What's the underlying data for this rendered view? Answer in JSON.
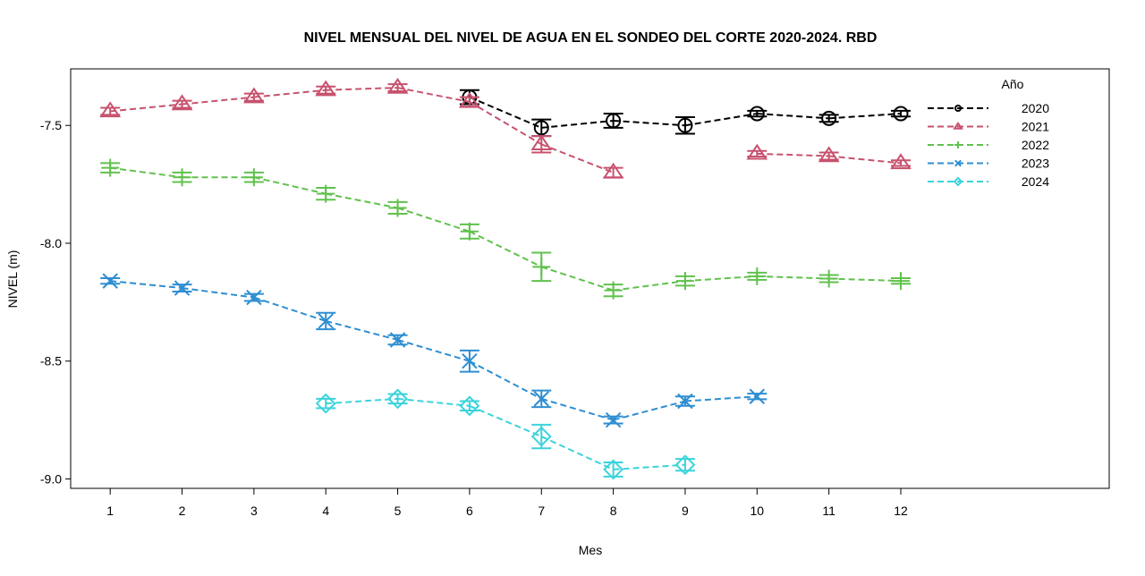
{
  "chart_data": {
    "type": "line",
    "title": "NIVEL MENSUAL DEL NIVEL DE AGUA EN EL  SONDEO DEL CORTE 2020-2024. RBD",
    "xlabel": "Mes",
    "ylabel": "NIVEL (m)",
    "xlim": [
      0.45,
      14.9
    ],
    "ylim": [
      -9.04,
      -7.26
    ],
    "x_ticks": [
      1,
      2,
      3,
      4,
      5,
      6,
      7,
      8,
      9,
      10,
      11,
      12
    ],
    "y_ticks": [
      -9.0,
      -8.5,
      -8.0,
      -7.5
    ],
    "y_tick_labels": [
      "-9.0",
      "-8.5",
      "-8.0",
      "-7.5"
    ],
    "grid": false,
    "legend": {
      "title": "Año",
      "position": "top-right"
    },
    "series": [
      {
        "name": "2020",
        "color": "#000000",
        "marker": "circle",
        "x": [
          6,
          7,
          8,
          9,
          10,
          11,
          12
        ],
        "y": [
          -7.38,
          -7.51,
          -7.48,
          -7.5,
          -7.45,
          -7.47,
          -7.45
        ],
        "err": [
          0.03,
          0.035,
          0.03,
          0.035,
          0.012,
          0.015,
          0.012
        ]
      },
      {
        "name": "2021",
        "color": "#C7526E",
        "marker": "triangle",
        "x": [
          1,
          2,
          3,
          4,
          5,
          6,
          7,
          8,
          10,
          11,
          12
        ],
        "y": [
          -7.44,
          -7.41,
          -7.38,
          -7.35,
          -7.34,
          -7.4,
          -7.58,
          -7.7,
          -7.62,
          -7.63,
          -7.66
        ],
        "err": [
          0.015,
          0.015,
          0.015,
          0.015,
          0.015,
          0.02,
          0.035,
          0.02,
          0.012,
          0.015,
          0.012
        ]
      },
      {
        "name": "2022",
        "color": "#61C14E",
        "marker": "plus",
        "x": [
          1,
          2,
          3,
          4,
          5,
          6,
          7,
          8,
          9,
          10,
          11,
          12
        ],
        "y": [
          -7.68,
          -7.72,
          -7.72,
          -7.79,
          -7.85,
          -7.95,
          -8.1,
          -8.2,
          -8.16,
          -8.14,
          -8.15,
          -8.16
        ],
        "err": [
          0.02,
          0.02,
          0.02,
          0.025,
          0.025,
          0.03,
          0.06,
          0.025,
          0.02,
          0.015,
          0.015,
          0.012
        ]
      },
      {
        "name": "2023",
        "color": "#2E8ED1",
        "marker": "x",
        "x": [
          1,
          2,
          3,
          4,
          5,
          6,
          7,
          8,
          9,
          10
        ],
        "y": [
          -8.16,
          -8.19,
          -8.23,
          -8.33,
          -8.41,
          -8.5,
          -8.66,
          -8.75,
          -8.67,
          -8.65
        ],
        "err": [
          0.012,
          0.015,
          0.015,
          0.035,
          0.02,
          0.045,
          0.035,
          0.015,
          0.02,
          0.012
        ]
      },
      {
        "name": "2024",
        "color": "#3BD3DB",
        "marker": "diamond",
        "x": [
          4,
          5,
          6,
          7,
          8,
          9
        ],
        "y": [
          -8.68,
          -8.66,
          -8.69,
          -8.82,
          -8.96,
          -8.94
        ],
        "err": [
          0.02,
          0.02,
          0.02,
          0.05,
          0.03,
          0.025
        ]
      }
    ]
  }
}
